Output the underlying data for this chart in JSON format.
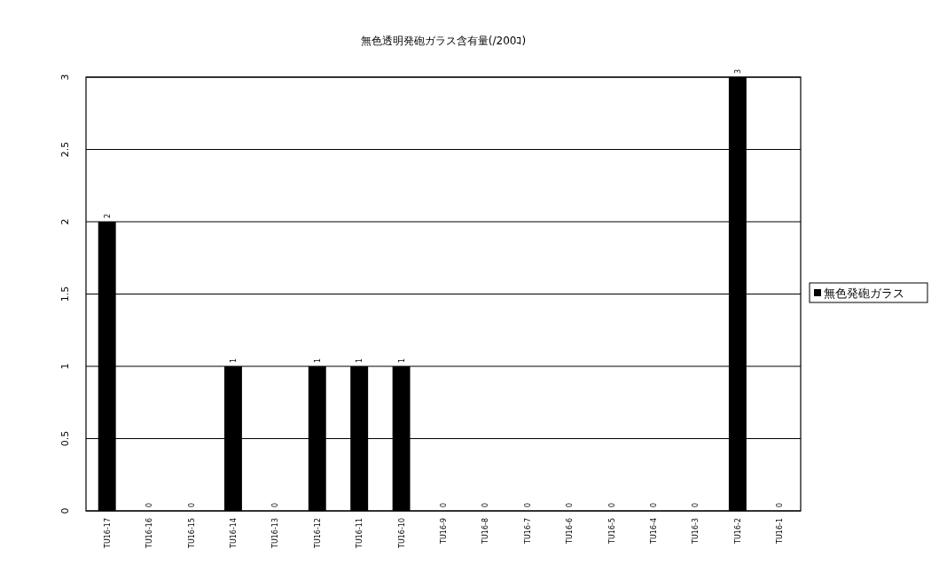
{
  "chart_data": {
    "type": "bar",
    "title": "無色透明発砲ガラス含有量(/200ｺ)",
    "categories": [
      "TU16-17",
      "TU16-16",
      "TU16-15",
      "TU16-14",
      "TU16-13",
      "TU16-12",
      "TU16-11",
      "TU16-10",
      "TU16-9",
      "TU16-8",
      "TU16-7",
      "TU16-6",
      "TU16-5",
      "TU16-4",
      "TU16-3",
      "TU16-2",
      "TU16-1"
    ],
    "series": [
      {
        "name": "無色発砲ガラス",
        "color": "#000000",
        "values": [
          2,
          0,
          0,
          1,
          0,
          1,
          1,
          1,
          0,
          0,
          0,
          0,
          0,
          0,
          0,
          3,
          0
        ]
      }
    ],
    "ylim": [
      0,
      3
    ],
    "yticks": [
      0,
      0.5,
      1,
      1.5,
      2,
      2.5,
      3
    ],
    "grid": "y",
    "legend": "right",
    "data_labels": true
  }
}
